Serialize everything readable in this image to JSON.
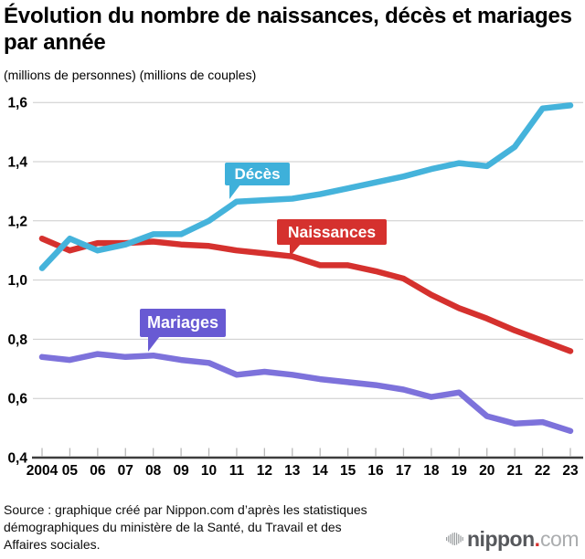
{
  "header": {
    "title": "Évolution du nombre de naissances, décès et mariages par année",
    "subtitle": "(millions de personnes) (millions de couples)"
  },
  "chart_data": {
    "type": "line",
    "title": "Évolution du nombre de naissances, décès et mariages par année",
    "unit_note": "(millions de personnes) (millions de couples)",
    "categories": [
      "2004",
      "05",
      "06",
      "07",
      "08",
      "09",
      "10",
      "11",
      "12",
      "13",
      "14",
      "15",
      "16",
      "17",
      "18",
      "19",
      "20",
      "21",
      "22",
      "23"
    ],
    "series": [
      {
        "name": "Décès",
        "color": "#45B3DB",
        "label_bg": "#3EB0DA",
        "values": [
          1.04,
          1.14,
          1.1,
          1.12,
          1.155,
          1.155,
          1.2,
          1.265,
          1.27,
          1.275,
          1.29,
          1.31,
          1.33,
          1.35,
          1.375,
          1.395,
          1.385,
          1.45,
          1.58,
          1.59
        ]
      },
      {
        "name": "Naissances",
        "color": "#D5312E",
        "label_bg": "#D5312E",
        "values": [
          1.14,
          1.1,
          1.125,
          1.125,
          1.13,
          1.12,
          1.115,
          1.1,
          1.09,
          1.08,
          1.05,
          1.05,
          1.03,
          1.005,
          0.95,
          0.905,
          0.87,
          0.83,
          0.795,
          0.76
        ]
      },
      {
        "name": "Mariages",
        "color": "#7D72DB",
        "label_bg": "#685AD3",
        "values": [
          0.74,
          0.73,
          0.75,
          0.74,
          0.745,
          0.73,
          0.72,
          0.68,
          0.69,
          0.68,
          0.665,
          0.655,
          0.645,
          0.63,
          0.605,
          0.62,
          0.54,
          0.515,
          0.52,
          0.49
        ]
      }
    ],
    "xlabel": "",
    "ylabel": "",
    "ylim": [
      0.4,
      1.6
    ],
    "yticks": {
      "values": [
        0.4,
        0.6,
        0.8,
        1.0,
        1.2,
        1.4,
        1.6
      ],
      "labels": [
        "0,4",
        "0,6",
        "0,8",
        "1,0",
        "1,2",
        "1,4",
        "1,6"
      ]
    },
    "grid": true,
    "legend_position": "callouts-on-chart"
  },
  "footer": {
    "source_lines": [
      "Source : graphique créé par Nippon.com d’après les statistiques",
      "démographiques du ministère de la Santé, du Travail et des",
      "Affaires sociales."
    ]
  },
  "logo": {
    "brand_bold": "nippon",
    "brand_dot": ".",
    "brand_light": "com",
    "dot_color": "#D5312E"
  }
}
